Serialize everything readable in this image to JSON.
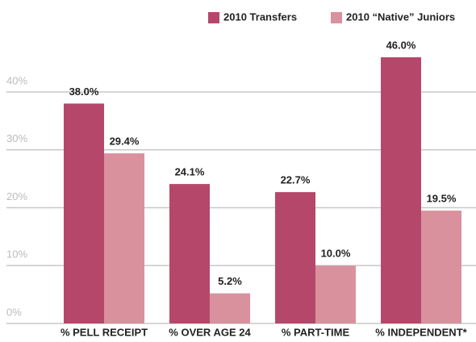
{
  "chart_data": {
    "type": "bar",
    "categories": [
      "% PELL RECEIPT",
      "% OVER AGE 24",
      "% PART-TIME",
      "% INDEPENDENT*"
    ],
    "series": [
      {
        "name": "2010 Transfers",
        "color": "#b5486a",
        "values": [
          38.0,
          24.1,
          22.7,
          46.0
        ],
        "value_labels": [
          "38.0%",
          "24.1%",
          "22.7%",
          "46.0%"
        ]
      },
      {
        "name": "2010 “Native” Juniors",
        "color": "#d9919e",
        "values": [
          29.4,
          5.2,
          10.0,
          19.5
        ],
        "value_labels": [
          "29.4%",
          "5.2%",
          "10.0%",
          "19.5%"
        ]
      }
    ],
    "ylim": [
      0,
      50
    ],
    "yticks": [
      {
        "value": 0,
        "label": "0%"
      },
      {
        "value": 10,
        "label": "10%"
      },
      {
        "value": 20,
        "label": "20%"
      },
      {
        "value": 30,
        "label": "30%"
      },
      {
        "value": 40,
        "label": "40%"
      }
    ],
    "grid": true,
    "legend": "top-right"
  }
}
